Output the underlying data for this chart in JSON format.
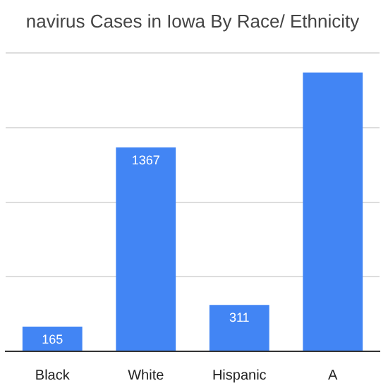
{
  "chart_data": {
    "type": "bar",
    "title": "navirus Cases in Iowa By Race/ Ethnicity",
    "categories": [
      "Black",
      "White",
      "Hispanic",
      "A"
    ],
    "values": [
      165,
      1367,
      311,
      1870
    ],
    "value_labels": [
      "165",
      "1367",
      "311",
      null
    ],
    "color": "#4285f4",
    "ylim": [
      0,
      2000
    ],
    "yticks": [
      {
        "value": 0,
        "label": null
      },
      {
        "value": 500,
        "label": null
      },
      {
        "value": 1000,
        "label": null
      },
      {
        "value": 1500,
        "label": null
      },
      {
        "value": 2000,
        "label": null
      }
    ],
    "tick_labels": "x",
    "grid": "y",
    "legend": false
  }
}
